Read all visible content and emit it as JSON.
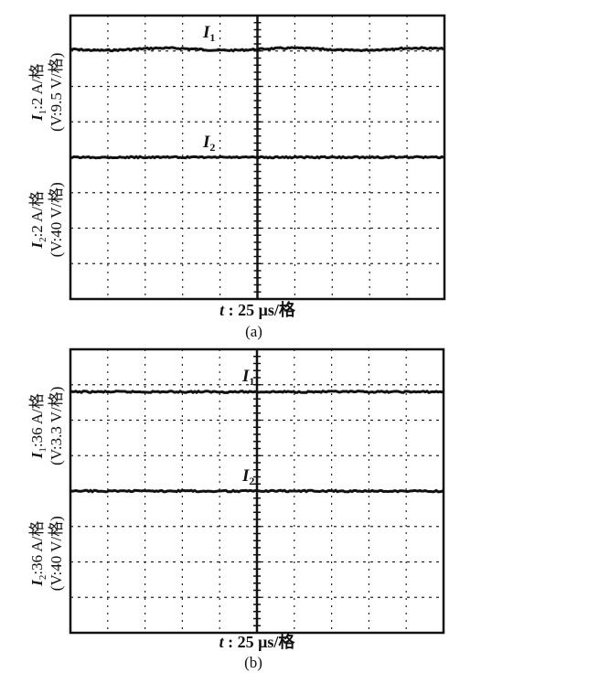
{
  "chart_data": [
    {
      "type": "line",
      "panel_label": "(a)",
      "xlabel_var": "t",
      "xlabel": ": 25 μs/格",
      "ylabel_top_line1": "I",
      "ylabel_top_sub": "1",
      "ylabel_top_line1_rest": ":2 A/格",
      "ylabel_top_line2": "(V:9.5 V/格)",
      "ylabel_bottom_line1": "I",
      "ylabel_bottom_sub": "2",
      "ylabel_bottom_line1_rest": ":2 A/格",
      "ylabel_bottom_line2": "(V:40 V/格)",
      "grid": true,
      "x_divisions": 10,
      "y_divisions": 8,
      "xlim_div": [
        0,
        10
      ],
      "ylim_div": [
        -4,
        4
      ],
      "series": [
        {
          "name": "I",
          "sub": "1",
          "level_div": 3.05,
          "ripple": "small"
        },
        {
          "name": "I",
          "sub": "2",
          "level_div": 0.0,
          "ripple": "small"
        }
      ]
    },
    {
      "type": "line",
      "panel_label": "(b)",
      "xlabel_var": "t",
      "xlabel": ": 25 μs/格",
      "ylabel_top_line1": "I",
      "ylabel_top_sub": "1",
      "ylabel_top_line1_rest": ":36 A/格",
      "ylabel_top_line2": "(V:3.3 V/格)",
      "ylabel_bottom_line1": "I",
      "ylabel_bottom_sub": "2",
      "ylabel_bottom_line1_rest": ":36 A/格",
      "ylabel_bottom_line2": "(V:40 V/格)",
      "grid": true,
      "x_divisions": 10,
      "y_divisions": 8,
      "xlim_div": [
        0,
        10
      ],
      "ylim_div": [
        -4,
        4
      ],
      "series": [
        {
          "name": "I",
          "sub": "1",
          "level_div": 2.8,
          "ripple": "small"
        },
        {
          "name": "I",
          "sub": "2",
          "level_div": 0.0,
          "ripple": "small"
        }
      ]
    }
  ]
}
